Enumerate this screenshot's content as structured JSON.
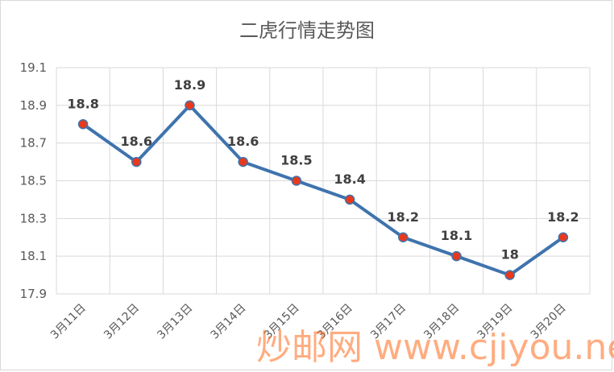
{
  "chart_data": {
    "type": "line",
    "title": "二虎行情走势图",
    "categories": [
      "3月11日",
      "3月12日",
      "3月13日",
      "3月14日",
      "3月15日",
      "3月16日",
      "3月17日",
      "3月18日",
      "3月19日",
      "3月20日"
    ],
    "series": [
      {
        "values": [
          18.8,
          18.6,
          18.9,
          18.6,
          18.5,
          18.4,
          18.2,
          18.1,
          18.0,
          18.2
        ]
      }
    ],
    "data_labels": [
      "18.8",
      "18.6",
      "18.9",
      "18.6",
      "18.5",
      "18.4",
      "18.2",
      "18.1",
      "18",
      "18.2"
    ],
    "yticks": [
      "19.1",
      "18.9",
      "18.7",
      "18.5",
      "18.3",
      "18.1",
      "17.9"
    ],
    "ylim": [
      17.9,
      19.1
    ],
    "grid": true,
    "colors": {
      "line": "#3f73ad",
      "marker_fill": "#e8391c",
      "grid": "#d9d9d9"
    }
  },
  "watermark": {
    "text": "炒邮网 www.cjiyou.net"
  }
}
